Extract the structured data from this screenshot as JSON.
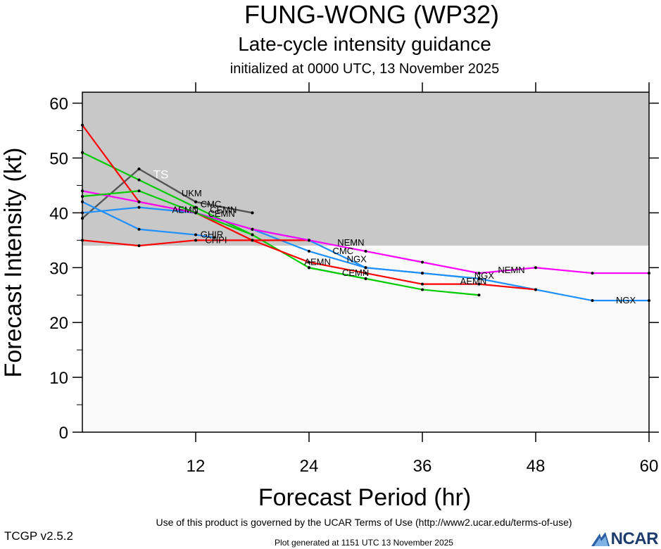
{
  "chart_data": {
    "type": "line",
    "title": "FUNG-WONG (WP32)",
    "subtitle": "Late-cycle intensity guidance",
    "subtitle2": "initialized at 0000 UTC, 13 November 2025",
    "xlabel": "Forecast Period (hr)",
    "ylabel": "Forecast Intensity (kt)",
    "xlim": [
      0,
      60
    ],
    "ylim": [
      0,
      62
    ],
    "xticks": [
      12,
      24,
      36,
      48,
      60
    ],
    "yticks": [
      0,
      10,
      20,
      30,
      40,
      50,
      60
    ],
    "shading": {
      "threshold": 34,
      "above_color": "#c8c8c8",
      "below_color": "#fafafa"
    },
    "threshold_label": "TS",
    "series": [
      {
        "name": "UKM",
        "color": "#555555",
        "label_pos": [
          10.5,
          43.5
        ],
        "points": [
          [
            0,
            39
          ],
          [
            6,
            48
          ],
          [
            12,
            42
          ],
          [
            18,
            40
          ]
        ]
      },
      {
        "name": "CMC",
        "color": "#555555",
        "label_pos": [
          12.5,
          41.5
        ],
        "points": [
          [
            0,
            39
          ],
          [
            6,
            48
          ],
          [
            12,
            42
          ],
          [
            18,
            40
          ]
        ]
      },
      {
        "name": "CEMN",
        "color": "#00cc00",
        "label_pos": [
          13.5,
          40.5
        ],
        "points": [
          [
            0,
            51
          ],
          [
            6,
            46
          ],
          [
            12,
            41
          ],
          [
            18,
            36
          ],
          [
            24,
            30
          ],
          [
            30,
            28
          ],
          [
            36,
            26
          ],
          [
            42,
            25
          ]
        ]
      },
      {
        "name": "AEMN",
        "color": "#1e90ff",
        "label_pos": [
          9.5,
          40.5
        ],
        "points": [
          [
            0,
            40
          ],
          [
            6,
            41
          ],
          [
            12,
            40
          ],
          [
            18,
            37
          ],
          [
            24,
            33
          ],
          [
            30,
            30
          ],
          [
            36,
            29
          ],
          [
            42,
            28
          ],
          [
            48,
            26
          ],
          [
            54,
            24
          ],
          [
            60,
            24
          ]
        ]
      },
      {
        "name": "GHIR",
        "color": "#1e90ff",
        "label_pos": [
          12.5,
          36
        ],
        "points": [
          [
            0,
            42
          ],
          [
            6,
            37
          ],
          [
            12,
            36
          ],
          [
            14,
            35.5
          ]
        ]
      },
      {
        "name": "CHPI",
        "color": "#ff0000",
        "label_pos": [
          13,
          35
        ],
        "points": [
          [
            0,
            35
          ],
          [
            6,
            34
          ],
          [
            12,
            35
          ],
          [
            18,
            35
          ],
          [
            24,
            35
          ]
        ]
      },
      {
        "name": "AEMN",
        "color": "#ff0000",
        "label_pos": [
          23.5,
          31
        ],
        "points": [
          [
            0,
            56
          ],
          [
            6,
            42
          ],
          [
            12,
            40
          ],
          [
            18,
            35
          ],
          [
            24,
            31
          ],
          [
            30,
            29
          ],
          [
            36,
            27
          ],
          [
            42,
            27
          ],
          [
            48,
            26
          ]
        ]
      },
      {
        "name": "CMC",
        "color": "#1e90ff",
        "label_pos": [
          26.5,
          33
        ],
        "points": [
          [
            18,
            37
          ],
          [
            24,
            35
          ],
          [
            30,
            30
          ]
        ]
      },
      {
        "name": "NGX",
        "color": "#1e90ff",
        "label_pos": [
          28,
          31.5
        ],
        "points": [
          [
            30,
            30
          ],
          [
            36,
            29
          ],
          [
            42,
            28
          ]
        ]
      },
      {
        "name": "CEMN",
        "color": "#00cc00",
        "label_pos": [
          27.5,
          29
        ],
        "points": [
          [
            24,
            30
          ],
          [
            30,
            28
          ]
        ]
      },
      {
        "name": "NEMN",
        "color": "#ff00ff",
        "label_pos": [
          27,
          34.5
        ],
        "points": [
          [
            0,
            44
          ],
          [
            6,
            42
          ],
          [
            12,
            40
          ],
          [
            18,
            37
          ],
          [
            24,
            35
          ],
          [
            30,
            33
          ],
          [
            36,
            31
          ],
          [
            42,
            29
          ],
          [
            48,
            30
          ],
          [
            54,
            29
          ],
          [
            60,
            29
          ]
        ]
      },
      {
        "name": "AEMN",
        "color": "#ff0000",
        "label_pos": [
          40,
          27.5
        ],
        "points": []
      },
      {
        "name": "NGX",
        "color": "#1e90ff",
        "label_pos": [
          41.5,
          28.5
        ],
        "points": []
      },
      {
        "name": "NEMN",
        "color": "#ff00ff",
        "label_pos": [
          44,
          29.5
        ],
        "points": []
      },
      {
        "name": "NGX",
        "color": "#1e90ff",
        "label_pos": [
          56.5,
          24
        ],
        "points": []
      },
      {
        "name": "CEMN",
        "color": "#00cc00",
        "label_pos": [
          13.3,
          39.8
        ],
        "points": [
          [
            0,
            43
          ],
          [
            6,
            44
          ],
          [
            12,
            40
          ],
          [
            18,
            36
          ]
        ]
      }
    ]
  },
  "footer": {
    "terms": "Use of this product is governed by the UCAR Terms of Use (http://www2.ucar.edu/terms-of-use)",
    "version": "TCGP v2.5.2",
    "generated": "Plot generated at 1151 UTC   13 November 2025",
    "logo_text": "NCAR"
  }
}
